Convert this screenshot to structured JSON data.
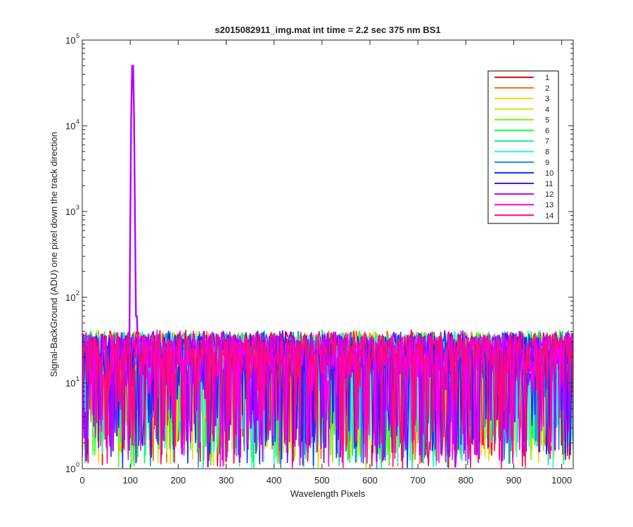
{
  "chart_data": {
    "type": "line",
    "title": "s2015082911_img.mat int time = 2.2 sec  375 nm BS1",
    "xlabel": "Wavelength Pixels",
    "ylabel": "Signal-BackGround (ADU) one pixel down the track direction",
    "xlim": [
      0,
      1024
    ],
    "ylim": [
      1,
      100000
    ],
    "yscale": "log",
    "x_ticks": [
      "0",
      "100",
      "200",
      "300",
      "400",
      "500",
      "600",
      "700",
      "800",
      "900",
      "1000"
    ],
    "y_ticks": [
      {
        "base": "10",
        "exp": "0"
      },
      {
        "base": "10",
        "exp": "1"
      },
      {
        "base": "10",
        "exp": "2"
      },
      {
        "base": "10",
        "exp": "3"
      },
      {
        "base": "10",
        "exp": "4"
      },
      {
        "base": "10",
        "exp": "5"
      }
    ],
    "grid": false,
    "legend_position": "top-right",
    "noise": {
      "x_start": 0,
      "x_end": 1024,
      "y_min": 1,
      "y_max": 48,
      "typical": 15
    },
    "peak": {
      "series": "12",
      "x": 105,
      "y": 50000,
      "shoulder_x": 115,
      "shoulder_y": 60
    },
    "series": [
      {
        "name": "1",
        "color": "#ff0000"
      },
      {
        "name": "2",
        "color": "#ff6e00"
      },
      {
        "name": "3",
        "color": "#ffd400"
      },
      {
        "name": "4",
        "color": "#c8f000"
      },
      {
        "name": "5",
        "color": "#66ff00"
      },
      {
        "name": "6",
        "color": "#1aff33"
      },
      {
        "name": "7",
        "color": "#19e699"
      },
      {
        "name": "8",
        "color": "#22f2ee"
      },
      {
        "name": "9",
        "color": "#1a8fe0"
      },
      {
        "name": "10",
        "color": "#0035ff"
      },
      {
        "name": "11",
        "color": "#5a0ff0"
      },
      {
        "name": "12",
        "color": "#b400ff"
      },
      {
        "name": "13",
        "color": "#ff00e6"
      },
      {
        "name": "14",
        "color": "#ff0a78"
      }
    ]
  }
}
